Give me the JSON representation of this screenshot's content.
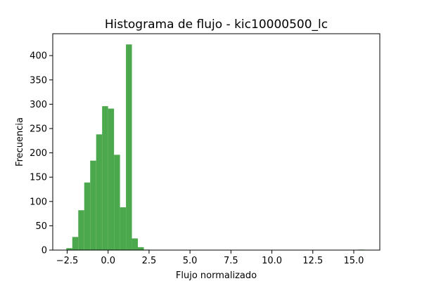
{
  "chart_data": {
    "type": "bar",
    "title": "Histograma de flujo - kic10000500_lc",
    "xlabel": "Flujo normalizado",
    "ylabel": "Frecuencia",
    "xlim": [
      -3.38,
      16.59
    ],
    "ylim": [
      0,
      445
    ],
    "x_ticks": [
      -2.5,
      0.0,
      2.5,
      5.0,
      7.5,
      10.0,
      12.5,
      15.0
    ],
    "x_tick_labels": [
      "−2.5",
      "0.0",
      "2.5",
      "5.0",
      "7.5",
      "10.0",
      "12.5",
      "15.0"
    ],
    "y_ticks": [
      0,
      50,
      100,
      150,
      200,
      250,
      300,
      350,
      400
    ],
    "y_tick_labels": [
      "0",
      "50",
      "100",
      "150",
      "200",
      "250",
      "300",
      "350",
      "400"
    ],
    "bar_color": "#4ca84c",
    "grid": false,
    "legend": "none",
    "series": [
      {
        "bin_start": -2.55,
        "bin_width": 0.364,
        "values": [
          4,
          27,
          82,
          139,
          184,
          238,
          296,
          291,
          196,
          88,
          423,
          24,
          6,
          1,
          0,
          0,
          0,
          0,
          0,
          0,
          0,
          0,
          0,
          0,
          0,
          0,
          0,
          0,
          0,
          0,
          0,
          0,
          0,
          0,
          0,
          0,
          0,
          0,
          0,
          0,
          0,
          0,
          0,
          0,
          0,
          0,
          0,
          0,
          0,
          1
        ]
      }
    ]
  }
}
